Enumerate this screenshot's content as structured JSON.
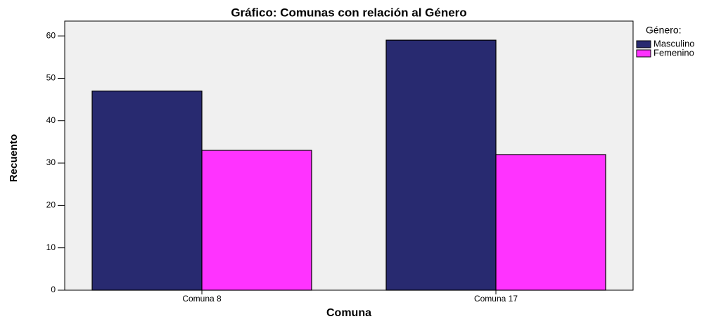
{
  "chart_data": {
    "type": "bar",
    "title": "Gráfico: Comunas con relación al Género",
    "x_label": "Comuna",
    "y_label": "Recuento",
    "legend_title": "Género:",
    "categories": [
      "Comuna 8",
      "Comuna 17"
    ],
    "series": [
      {
        "name": "Masculino",
        "color": "#282a70",
        "values": [
          47,
          59
        ]
      },
      {
        "name": "Femenino",
        "color": "#ff33ff",
        "values": [
          33,
          32
        ]
      }
    ],
    "ylim": [
      0,
      63.5
    ],
    "yticks": [
      0,
      10,
      20,
      30,
      40,
      50,
      60
    ],
    "legend": "right"
  }
}
